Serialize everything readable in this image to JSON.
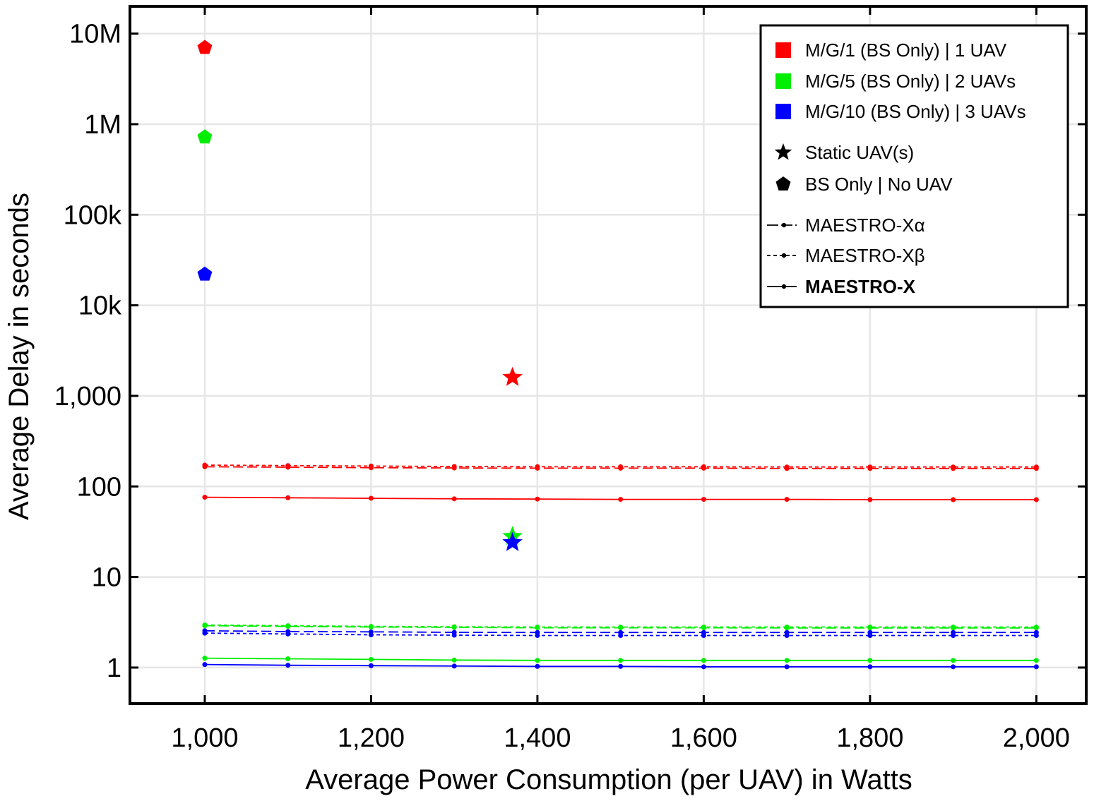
{
  "chart_data": {
    "type": "line",
    "xlabel": "Average Power Consumption (per UAV) in Watts",
    "ylabel": "Average Delay in seconds",
    "xlim": [
      910,
      2060
    ],
    "ylim": [
      0.4,
      20000000
    ],
    "yscale": "log",
    "grid": true,
    "legend_position": "top-right",
    "x_ticks": [
      {
        "value": 1000,
        "label": "1,000"
      },
      {
        "value": 1200,
        "label": "1,200"
      },
      {
        "value": 1400,
        "label": "1,400"
      },
      {
        "value": 1600,
        "label": "1,600"
      },
      {
        "value": 1800,
        "label": "1,800"
      },
      {
        "value": 2000,
        "label": "2,000"
      }
    ],
    "y_ticks": [
      {
        "value": 1,
        "label": "1"
      },
      {
        "value": 10,
        "label": "10"
      },
      {
        "value": 100,
        "label": "100"
      },
      {
        "value": 1000,
        "label": "1,000"
      },
      {
        "value": 10000,
        "label": "10k"
      },
      {
        "value": 100000,
        "label": "100k"
      },
      {
        "value": 1000000,
        "label": "1M"
      },
      {
        "value": 10000000,
        "label": "10M"
      }
    ],
    "x": [
      1000,
      1100,
      1200,
      1300,
      1400,
      1500,
      1600,
      1700,
      1800,
      1900,
      2000
    ],
    "series": [
      {
        "color": "#ff0000",
        "style": "alpha",
        "values": [
          165,
          163,
          161,
          160,
          159,
          159,
          159,
          158,
          158,
          158,
          158
        ]
      },
      {
        "color": "#ff0000",
        "style": "beta",
        "values": [
          172,
          170,
          168,
          166,
          165,
          165,
          165,
          164,
          164,
          164,
          164
        ]
      },
      {
        "color": "#ff0000",
        "style": "solid",
        "values": [
          76,
          75,
          74,
          73,
          72.5,
          72,
          72,
          72,
          71.5,
          71.5,
          71.5
        ]
      },
      {
        "color": "#00ee00",
        "style": "alpha",
        "values": [
          2.9,
          2.85,
          2.8,
          2.78,
          2.75,
          2.75,
          2.75,
          2.74,
          2.74,
          2.74,
          2.74
        ]
      },
      {
        "color": "#00ee00",
        "style": "beta",
        "values": [
          2.95,
          2.9,
          2.85,
          2.82,
          2.8,
          2.8,
          2.8,
          2.8,
          2.8,
          2.8,
          2.8
        ]
      },
      {
        "color": "#00ee00",
        "style": "solid",
        "values": [
          1.27,
          1.25,
          1.23,
          1.21,
          1.2,
          1.2,
          1.2,
          1.2,
          1.2,
          1.2,
          1.2
        ]
      },
      {
        "color": "#0000ff",
        "style": "alpha",
        "values": [
          2.55,
          2.5,
          2.48,
          2.45,
          2.44,
          2.44,
          2.44,
          2.44,
          2.44,
          2.44,
          2.44
        ]
      },
      {
        "color": "#0000ff",
        "style": "beta",
        "values": [
          2.4,
          2.35,
          2.3,
          2.28,
          2.26,
          2.26,
          2.26,
          2.26,
          2.26,
          2.26,
          2.26
        ]
      },
      {
        "color": "#0000ff",
        "style": "solid",
        "values": [
          1.08,
          1.06,
          1.05,
          1.04,
          1.03,
          1.03,
          1.02,
          1.02,
          1.02,
          1.02,
          1.02
        ]
      }
    ],
    "pentagon_points": [
      {
        "x": 1000,
        "y": 7000000,
        "color": "#ff0000"
      },
      {
        "x": 1000,
        "y": 720000,
        "color": "#00ee00"
      },
      {
        "x": 1000,
        "y": 22000,
        "color": "#0000ff"
      }
    ],
    "star_points": [
      {
        "x": 1370,
        "y": 1600,
        "color": "#ff0000"
      },
      {
        "x": 1370,
        "y": 28,
        "color": "#00ee00"
      },
      {
        "x": 1370,
        "y": 24,
        "color": "#0000ff"
      }
    ],
    "legend": {
      "entries": [
        {
          "text": "M/G/1 (BS Only) | 1 UAV",
          "symbol": "square",
          "color": "#ff0000"
        },
        {
          "text": "M/G/5 (BS Only) | 2 UAVs",
          "symbol": "square",
          "color": "#00ee00"
        },
        {
          "text": "M/G/10 (BS Only) | 3 UAVs",
          "symbol": "square",
          "color": "#0000ff"
        },
        {
          "text": "Static UAV(s)",
          "symbol": "star",
          "color": "#000000"
        },
        {
          "text": "BS Only | No UAV",
          "symbol": "pentagon",
          "color": "#000000"
        },
        {
          "text": "MAESTRO-Xα",
          "symbol": "line-alpha",
          "color": "#000000"
        },
        {
          "text": "MAESTRO-Xβ",
          "symbol": "line-beta",
          "color": "#000000"
        },
        {
          "text": "MAESTRO-X",
          "symbol": "line-solid",
          "color": "#000000",
          "bold": true
        }
      ]
    }
  }
}
